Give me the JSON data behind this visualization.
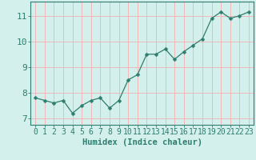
{
  "x": [
    0,
    1,
    2,
    3,
    4,
    5,
    6,
    7,
    8,
    9,
    10,
    11,
    12,
    13,
    14,
    15,
    16,
    17,
    18,
    19,
    20,
    21,
    22,
    23
  ],
  "y": [
    7.8,
    7.7,
    7.6,
    7.7,
    7.2,
    7.5,
    7.7,
    7.8,
    7.4,
    7.7,
    8.5,
    8.7,
    9.5,
    9.5,
    9.7,
    9.3,
    9.6,
    9.85,
    10.1,
    10.9,
    11.15,
    10.9,
    11.0,
    11.15
  ],
  "line_color": "#2e7d6e",
  "marker": "D",
  "marker_size": 2.5,
  "bg_color": "#d4f0ed",
  "grid_color": "#f0b8b8",
  "axis_color": "#2e7d6e",
  "xlabel": "Humidex (Indice chaleur)",
  "xlim": [
    -0.5,
    23.5
  ],
  "ylim": [
    6.75,
    11.55
  ],
  "yticks": [
    7,
    8,
    9,
    10,
    11
  ],
  "xticks": [
    0,
    1,
    2,
    3,
    4,
    5,
    6,
    7,
    8,
    9,
    10,
    11,
    12,
    13,
    14,
    15,
    16,
    17,
    18,
    19,
    20,
    21,
    22,
    23
  ],
  "font_color": "#2e7d6e",
  "tick_fontsize": 7,
  "xlabel_fontsize": 7.5
}
